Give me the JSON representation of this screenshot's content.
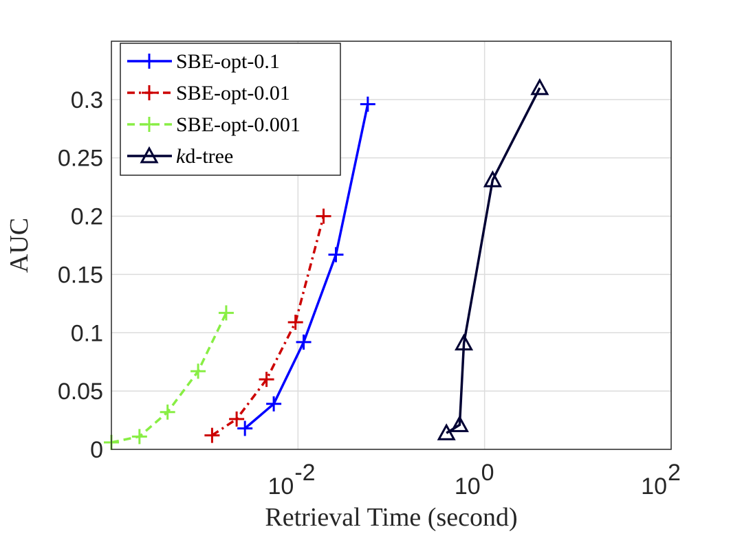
{
  "chart_data": {
    "type": "line",
    "xscale": "log",
    "xlabel": "Retrieval Time (second)",
    "ylabel": "AUC",
    "xlim": [
      0.0001,
      100
    ],
    "ylim": [
      0,
      0.35
    ],
    "xticks": [
      {
        "value": 0.01,
        "base": "10",
        "exp": "-2"
      },
      {
        "value": 1,
        "base": "10",
        "exp": "0"
      },
      {
        "value": 100,
        "base": "10",
        "exp": "2"
      }
    ],
    "yticks": [
      {
        "value": 0,
        "label": "0"
      },
      {
        "value": 0.05,
        "label": "0.05"
      },
      {
        "value": 0.1,
        "label": "0.1"
      },
      {
        "value": 0.15,
        "label": "0.15"
      },
      {
        "value": 0.2,
        "label": "0.2"
      },
      {
        "value": 0.25,
        "label": "0.25"
      },
      {
        "value": 0.3,
        "label": "0.3"
      }
    ],
    "grid": true,
    "legend_position": "top-left",
    "series": [
      {
        "name": "SBE-opt-0.1",
        "name_italic": "",
        "color": "#0000ff",
        "dash": "solid",
        "marker": "plus",
        "x": [
          0.0027,
          0.0055,
          0.0115,
          0.0255,
          0.056
        ],
        "y": [
          0.018,
          0.039,
          0.092,
          0.167,
          0.296
        ]
      },
      {
        "name": "SBE-opt-0.01",
        "name_italic": "",
        "color": "#cc0000",
        "dash": "dashdot",
        "marker": "plus",
        "x": [
          0.0012,
          0.0022,
          0.0046,
          0.0094,
          0.0188
        ],
        "y": [
          0.012,
          0.026,
          0.06,
          0.109,
          0.2
        ]
      },
      {
        "name": "SBE-opt-0.001",
        "name_italic": "",
        "color": "#88ee44",
        "dash": "dashed",
        "marker": "plus",
        "x": [
          0.0001,
          0.0002,
          0.0004,
          0.00085,
          0.0017
        ],
        "y": [
          0.006,
          0.011,
          0.032,
          0.067,
          0.117
        ]
      },
      {
        "name": "d-tree",
        "name_italic": "k",
        "color": "#000033",
        "dash": "solid",
        "marker": "triangle",
        "x": [
          0.39,
          0.54,
          0.6,
          1.22,
          3.9
        ],
        "y": [
          0.014,
          0.021,
          0.091,
          0.231,
          0.31
        ]
      }
    ]
  }
}
